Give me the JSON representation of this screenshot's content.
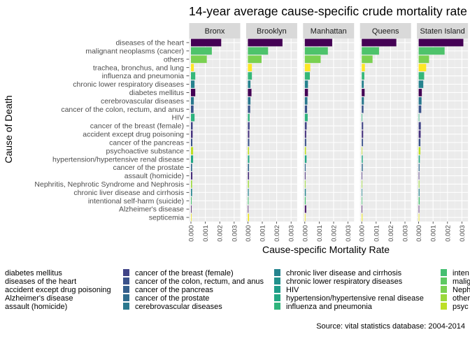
{
  "title": "14-year average cause-specific crude mortality rate",
  "caption": "Source: vital statistics database: 2004-2014",
  "chart_data": {
    "type": "bar",
    "orientation": "horizontal",
    "facets": [
      "Bronx",
      "Brooklyn",
      "Manhattan",
      "Queens",
      "Staten Island"
    ],
    "categories": [
      "diseases of the heart",
      "malignant neoplasms (cancer)",
      "others",
      "trachea, bronchus, and lung",
      "influenza and pneumonia",
      "chronic lower respiratory diseases",
      "diabetes mellitus",
      "cerebrovascular diseases",
      "cancer of the colon, rectum, and anus",
      "HIV",
      "cancer of the breast (female)",
      "accident except drug poisoning",
      "cancer of the pancreas",
      "psychoactive substance",
      "hypertension/hypertensive renal disease",
      "cancer of the prostate",
      "assault (homicide)",
      "Nephritis, Nephrotic Syndrome and Nephrosis",
      "chronic liver disease and cirrhosis",
      "intentional self‑harm (suicide)",
      "Alzheimer's disease",
      "septicemia"
    ],
    "series": [
      {
        "name": "Bronx",
        "values": [
          0.0021,
          0.00145,
          0.0011,
          0.0002,
          0.0003,
          0.00025,
          0.0003,
          0.0002,
          0.00018,
          0.00025,
          0.00012,
          0.00012,
          0.0001,
          0.00015,
          0.00015,
          8e-05,
          0.0001,
          8e-05,
          8e-05,
          5e-05,
          2e-05,
          2e-05
        ]
      },
      {
        "name": "Brooklyn",
        "values": [
          0.0024,
          0.0014,
          0.00095,
          0.00028,
          0.00028,
          0.00018,
          0.00025,
          0.00018,
          0.00016,
          0.00012,
          0.00012,
          0.0001,
          0.0001,
          8e-05,
          0.0001,
          8e-05,
          8e-05,
          7e-05,
          6e-05,
          5e-05,
          3e-05,
          8e-05
        ]
      },
      {
        "name": "Manhattan",
        "values": [
          0.0019,
          0.0016,
          0.0011,
          0.00038,
          0.00035,
          0.00022,
          0.00022,
          0.00018,
          0.00016,
          0.0002,
          0.00013,
          0.0001,
          0.0001,
          8e-05,
          0.00012,
          6e-05,
          5e-05,
          5e-05,
          7e-05,
          6e-05,
          0.0001,
          4e-05
        ]
      },
      {
        "name": "Queens",
        "values": [
          0.0024,
          0.0012,
          0.00075,
          0.00022,
          0.00018,
          0.00014,
          0.0002,
          0.00015,
          0.00012,
          4e-05,
          0.0001,
          0.0001,
          9e-05,
          4e-05,
          7e-05,
          7e-05,
          3e-05,
          4e-05,
          4e-05,
          4e-05,
          2e-05,
          5e-05
        ]
      },
      {
        "name": "Staten Island",
        "values": [
          0.0031,
          0.0018,
          0.00072,
          0.00052,
          0.00038,
          0.00032,
          0.00022,
          0.0002,
          0.00018,
          4e-05,
          0.00015,
          0.00014,
          0.00012,
          0.00012,
          8e-05,
          6e-05,
          4e-05,
          5e-05,
          6e-05,
          7e-05,
          3e-05,
          3e-05
        ]
      }
    ],
    "category_colors": {
      "diseases of the heart": "#440154",
      "malignant neoplasms (cancer)": "#4ec36b",
      "others": "#7ad151",
      "trachea, bronchus, and lung": "#fde725",
      "influenza and pneumonia": "#35b779",
      "chronic lower respiratory diseases": "#26828e",
      "diabetes mellitus": "#440154",
      "cerebrovascular diseases": "#2a788e",
      "cancer of the colon, rectum, and anus": "#3b528b",
      "HIV": "#2db27d",
      "cancer of the breast (female)": "#414487",
      "accident except drug poisoning": "#46327e",
      "cancer of the pancreas": "#3b528b",
      "psychoactive substance": "#bddf26",
      "hypertension/hypertensive renal disease": "#21a585",
      "cancer of the prostate": "#31688e",
      "assault (homicide)": "#472d7b",
      "Nephritis, Nephrotic Syndrome and Nephrosis": "#9bd93c",
      "chronic liver disease and cirrhosis": "#25838e",
      "intentional self‑harm (suicide)": "#46c06f",
      "Alzheimer's disease": "#481668",
      "septicemia": "#ece51b"
    },
    "xlabel": "Cause-specific Mortality Rate",
    "ylabel": "Cause of Death",
    "xlim": [
      0,
      0.0033
    ],
    "xticks": [
      0,
      0.001,
      0.002,
      0.003
    ],
    "xtick_labels": [
      "0.000",
      "0.001",
      "0.002",
      "0.003"
    ],
    "grid": true,
    "legend_position": "bottom",
    "legend": {
      "columns": [
        [
          {
            "label": "diabetes mellitus",
            "color": null
          },
          {
            "label": "diseases of the heart",
            "color": null
          },
          {
            "label": "accident except drug poisoning",
            "color": null
          },
          {
            "label": "Alzheimer's disease",
            "color": null
          },
          {
            "label": "assault (homicide)",
            "color": null
          }
        ],
        [
          {
            "label": "cancer of the breast (female)",
            "color": "#414487"
          },
          {
            "label": "cancer of the colon, rectum, and anus",
            "color": "#3b528b"
          },
          {
            "label": "cancer of the pancreas",
            "color": "#355f8d"
          },
          {
            "label": "cancer of the prostate",
            "color": "#2f6c8e"
          },
          {
            "label": "cerebrovascular diseases",
            "color": "#2a788e"
          }
        ],
        [
          {
            "label": "chronic liver disease and cirrhosis",
            "color": "#25848e"
          },
          {
            "label": "chronic lower respiratory diseases",
            "color": "#21918c"
          },
          {
            "label": "HIV",
            "color": "#1e9c89"
          },
          {
            "label": "hypertension/hypertensive renal disease",
            "color": "#22a884"
          },
          {
            "label": "influenza and pneumonia",
            "color": "#2fb47c"
          }
        ],
        [
          {
            "label": "inten",
            "color": "#44bf70"
          },
          {
            "label": "malig",
            "color": "#5ec962"
          },
          {
            "label": "Neph",
            "color": "#7ad151"
          },
          {
            "label": "other",
            "color": "#9bd93c"
          },
          {
            "label": "psyc",
            "color": "#bddf26"
          }
        ]
      ]
    }
  }
}
